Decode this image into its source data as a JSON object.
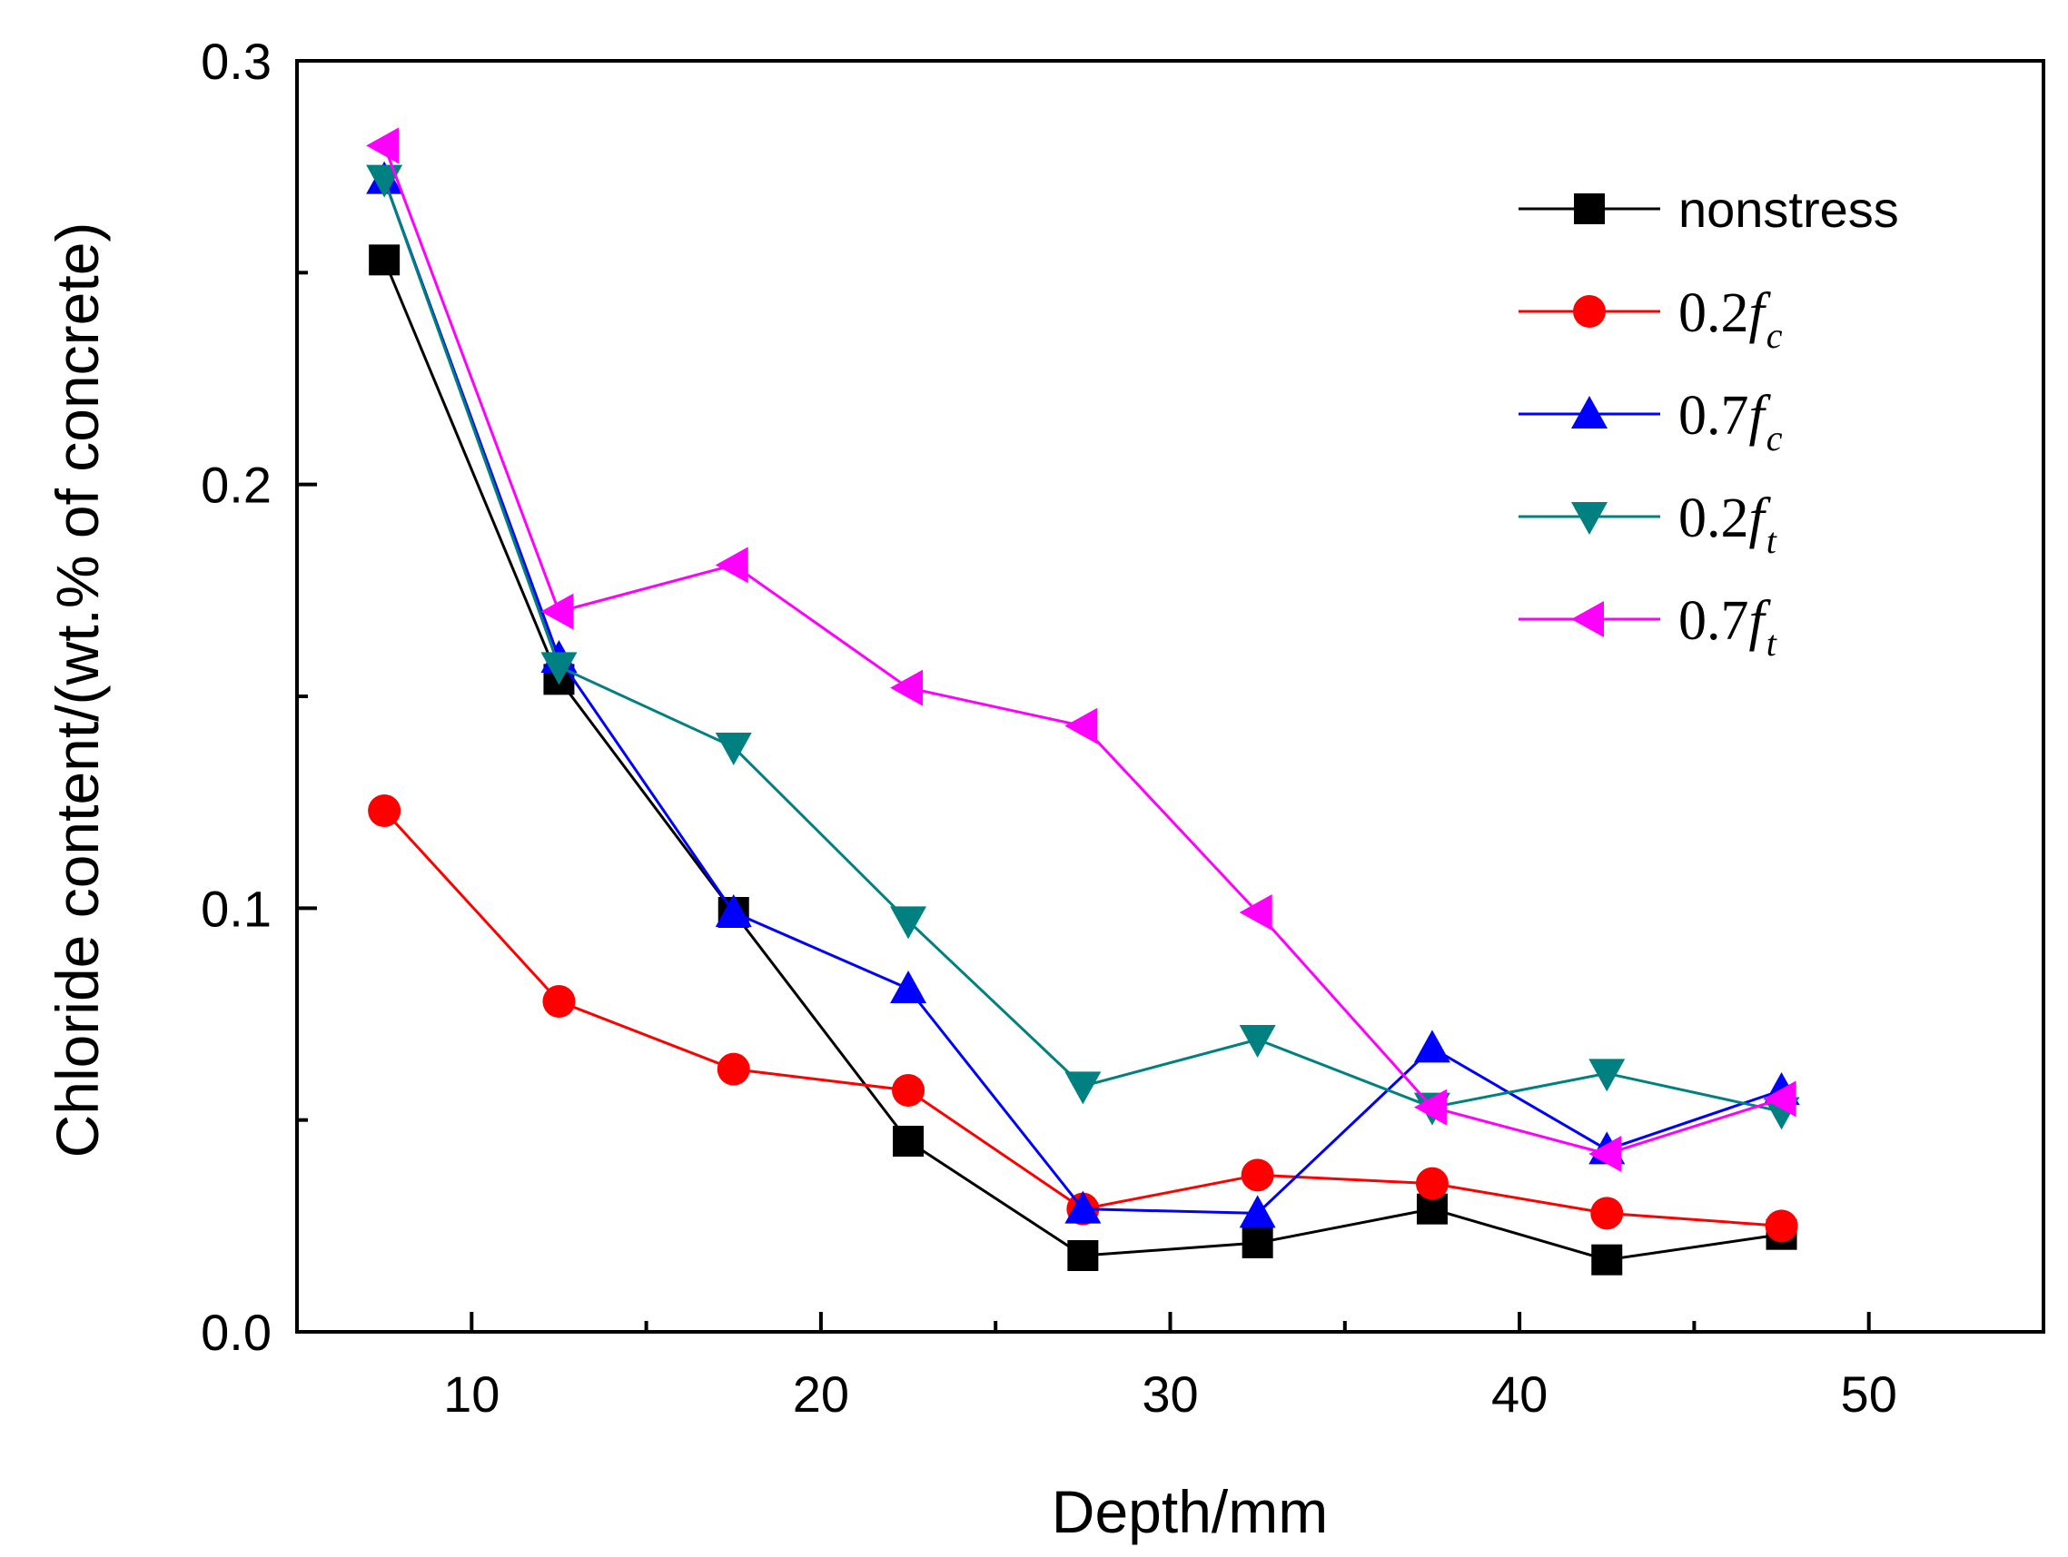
{
  "chart_data": {
    "type": "line",
    "title": "",
    "xlabel": "Depth/mm",
    "ylabel": "Chloride content/(wt.% of concrete)",
    "xlim": [
      5,
      55
    ],
    "ylim": [
      0.0,
      0.3
    ],
    "xticks": [
      10,
      20,
      30,
      40,
      50
    ],
    "xtick_labels": [
      "10",
      "20",
      "30",
      "40",
      "50"
    ],
    "yticks": [
      0.0,
      0.1,
      0.2,
      0.3
    ],
    "ytick_labels": [
      "0.0",
      "0.1",
      "0.2",
      "0.3"
    ],
    "grid": false,
    "legend_position": "top-right",
    "x": [
      7.5,
      12.5,
      17.5,
      22.5,
      27.5,
      32.5,
      37.5,
      42.5,
      47.5
    ],
    "series": [
      {
        "name": "nonstress",
        "label_main": "nonstress",
        "label_sub": "",
        "color": "#000000",
        "marker": "square",
        "values": [
          0.253,
          0.154,
          0.099,
          0.045,
          0.018,
          0.021,
          0.029,
          0.017,
          0.023
        ]
      },
      {
        "name": "0.2fc",
        "label_main": "0.2f",
        "label_sub": "c",
        "color": "#ff0000",
        "marker": "circle",
        "values": [
          0.123,
          0.078,
          0.062,
          0.057,
          0.029,
          0.037,
          0.035,
          0.028,
          0.025
        ]
      },
      {
        "name": "0.7fc",
        "label_main": "0.7f",
        "label_sub": "c",
        "color": "#0000ff",
        "marker": "triangle-up",
        "values": [
          0.272,
          0.159,
          0.099,
          0.081,
          0.029,
          0.028,
          0.067,
          0.043,
          0.057
        ]
      },
      {
        "name": "0.2ft",
        "label_main": "0.2f",
        "label_sub": "t",
        "color": "#008080",
        "marker": "triangle-down",
        "values": [
          0.272,
          0.157,
          0.138,
          0.097,
          0.058,
          0.069,
          0.053,
          0.061,
          0.052
        ]
      },
      {
        "name": "0.7ft",
        "label_main": "0.7f",
        "label_sub": "t",
        "color": "#ff00ff",
        "marker": "triangle-left",
        "values": [
          0.28,
          0.17,
          0.181,
          0.152,
          0.143,
          0.099,
          0.053,
          0.042,
          0.055
        ]
      }
    ]
  }
}
